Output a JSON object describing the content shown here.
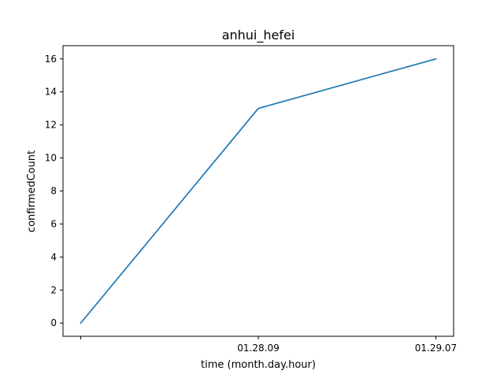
{
  "chart_data": {
    "type": "line",
    "title": "anhui_hefei",
    "xlabel": "time (month.day.hour)",
    "ylabel": "confirmedCount",
    "x": [
      "",
      "01.28.09",
      "01.29.07"
    ],
    "series": [
      {
        "values": [
          0,
          13,
          16
        ],
        "color": "#1f77b4"
      }
    ],
    "xlim": [
      -0.1,
      2.1
    ],
    "ylim": [
      -0.8,
      16.8
    ],
    "yticks": [
      0,
      2,
      4,
      6,
      8,
      10,
      12,
      14,
      16
    ],
    "grid": false,
    "legend": "none"
  }
}
